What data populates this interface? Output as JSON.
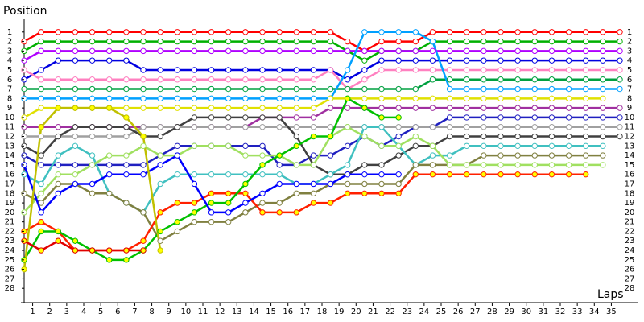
{
  "chart_data": {
    "type": "lap",
    "y_label": "Position",
    "x_label": "Laps",
    "x": [
      0,
      1,
      2,
      3,
      4,
      5,
      6,
      7,
      8,
      9,
      10,
      11,
      12,
      13,
      14,
      15,
      16,
      17,
      18,
      19,
      20,
      21,
      22,
      23,
      24,
      25,
      26,
      27,
      28,
      29,
      30,
      31,
      32,
      33,
      34,
      35
    ],
    "xlim": [
      0,
      35
    ],
    "ylim": [
      0,
      29
    ],
    "y_inverted": true,
    "xticks": [
      {
        "value": 0.5,
        "label": "1"
      },
      {
        "value": 1.5,
        "label": "2"
      },
      {
        "value": 2.5,
        "label": "3"
      },
      {
        "value": 3.5,
        "label": "4"
      },
      {
        "value": 4.5,
        "label": "5"
      },
      {
        "value": 5.5,
        "label": "6"
      },
      {
        "value": 6.5,
        "label": "7"
      },
      {
        "value": 7.5,
        "label": "8"
      },
      {
        "value": 8.5,
        "label": "9"
      },
      {
        "value": 9.5,
        "label": "10"
      },
      {
        "value": 10.5,
        "label": "11"
      },
      {
        "value": 11.5,
        "label": "12"
      },
      {
        "value": 12.5,
        "label": "13"
      },
      {
        "value": 13.5,
        "label": "14"
      },
      {
        "value": 14.5,
        "label": "15"
      },
      {
        "value": 15.5,
        "label": "16"
      },
      {
        "value": 16.5,
        "label": "17"
      },
      {
        "value": 17.5,
        "label": "18"
      },
      {
        "value": 18.5,
        "label": "19"
      },
      {
        "value": 19.5,
        "label": "20"
      },
      {
        "value": 20.5,
        "label": "21"
      },
      {
        "value": 21.5,
        "label": "22"
      },
      {
        "value": 22.5,
        "label": "23"
      },
      {
        "value": 23.5,
        "label": "24"
      },
      {
        "value": 24.5,
        "label": "25"
      },
      {
        "value": 25.5,
        "label": "26"
      },
      {
        "value": 26.5,
        "label": "27"
      },
      {
        "value": 27.5,
        "label": "28"
      },
      {
        "value": 28.5,
        "label": "29"
      },
      {
        "value": 29.5,
        "label": "30"
      },
      {
        "value": 30.5,
        "label": "31"
      },
      {
        "value": 31.5,
        "label": "32"
      },
      {
        "value": 32.5,
        "label": "33"
      },
      {
        "value": 33.5,
        "label": "34"
      },
      {
        "value": 34.5,
        "label": "35"
      }
    ],
    "yticks": [
      1,
      2,
      3,
      4,
      5,
      6,
      7,
      8,
      9,
      10,
      11,
      12,
      13,
      14,
      15,
      16,
      17,
      18,
      19,
      20,
      21,
      22,
      23,
      24,
      25,
      26,
      27,
      28
    ],
    "series": [
      {
        "color": "#ff0000",
        "marker_fill": "#ffffff",
        "values": [
          2,
          1,
          1,
          1,
          1,
          1,
          1,
          1,
          1,
          1,
          1,
          1,
          1,
          1,
          1,
          1,
          1,
          1,
          1,
          2,
          3,
          2,
          2,
          2,
          1,
          1,
          1,
          1,
          1,
          1,
          1,
          1,
          1,
          1,
          1,
          1
        ]
      },
      {
        "color": "#00b000",
        "marker_fill": "#ffffff",
        "values": [
          3,
          2,
          2,
          2,
          2,
          2,
          2,
          2,
          2,
          2,
          2,
          2,
          2,
          2,
          2,
          2,
          2,
          2,
          2,
          3,
          4,
          3,
          3,
          3,
          2,
          2,
          2,
          2,
          2,
          2,
          2,
          2,
          2,
          2,
          2,
          2
        ]
      },
      {
        "color": "#b000ff",
        "marker_fill": "#ffffff",
        "values": [
          4,
          3,
          3,
          3,
          3,
          3,
          3,
          3,
          3,
          3,
          3,
          3,
          3,
          3,
          3,
          3,
          3,
          3,
          3,
          3,
          3,
          3,
          3,
          3,
          3,
          3,
          3,
          3,
          3,
          3,
          3,
          3,
          3,
          3,
          3,
          3
        ]
      },
      {
        "color": "#0000e0",
        "marker_fill": "#ffffff",
        "values": [
          6,
          5,
          4,
          4,
          4,
          4,
          4,
          5,
          5,
          5,
          5,
          5,
          5,
          5,
          5,
          5,
          5,
          5,
          5,
          6,
          5,
          4,
          4,
          4,
          4,
          4,
          4,
          4,
          4,
          4,
          4,
          4,
          4,
          4,
          4,
          4
        ]
      },
      {
        "color": "#ff80c0",
        "marker_fill": "#ffffff",
        "values": [
          5,
          6,
          6,
          6,
          6,
          6,
          6,
          6,
          6,
          6,
          6,
          6,
          6,
          6,
          6,
          6,
          6,
          6,
          5,
          7,
          6,
          5,
          5,
          5,
          5,
          5,
          5,
          5,
          5,
          5,
          5,
          5,
          5,
          5,
          5,
          5
        ]
      },
      {
        "color": "#00a040",
        "marker_fill": "#ffffff",
        "values": [
          7,
          7,
          7,
          7,
          7,
          7,
          7,
          7,
          7,
          7,
          7,
          7,
          7,
          7,
          7,
          7,
          7,
          7,
          7,
          7,
          7,
          7,
          7,
          7,
          6,
          6,
          6,
          6,
          6,
          6,
          6,
          6,
          6,
          6,
          6,
          6
        ]
      },
      {
        "color": "#00a0ff",
        "marker_fill": "#ffffff",
        "values": [
          8,
          8,
          8,
          8,
          8,
          8,
          8,
          8,
          8,
          8,
          8,
          8,
          8,
          8,
          8,
          8,
          8,
          8,
          8,
          5,
          1,
          1,
          1,
          1,
          2,
          7,
          7,
          7,
          7,
          7,
          7,
          7,
          7,
          7,
          7,
          7
        ]
      },
      {
        "color": "#e0e000",
        "marker_fill": "#ffffff",
        "values": [
          10,
          9,
          9,
          9,
          9,
          9,
          9,
          9,
          9,
          9,
          9,
          9,
          9,
          9,
          9,
          9,
          9,
          9,
          8,
          8,
          8,
          8,
          8,
          8,
          8,
          8,
          8,
          8,
          8,
          8,
          8,
          8,
          8,
          8,
          8,
          null
        ]
      },
      {
        "color": "#a030a0",
        "marker_fill": "#ffffff",
        "values": [
          11,
          11,
          11,
          11,
          11,
          11,
          11,
          11,
          11,
          11,
          11,
          11,
          11,
          11,
          10,
          10,
          10,
          10,
          9,
          9,
          9,
          9,
          9,
          9,
          9,
          9,
          9,
          9,
          9,
          9,
          9,
          9,
          9,
          9,
          9,
          9
        ]
      },
      {
        "color": "#2020c0",
        "marker_fill": "#ffffff",
        "values": [
          14,
          15,
          15,
          15,
          15,
          15,
          15,
          15,
          14,
          13,
          13,
          13,
          13,
          13,
          13,
          15,
          15,
          14,
          14,
          13,
          12,
          13,
          12,
          11,
          11,
          10,
          10,
          10,
          10,
          10,
          10,
          10,
          10,
          10,
          10,
          10
        ]
      },
      {
        "color": "#a0a0a0",
        "marker_fill": "#ffffff",
        "values": [
          12,
          12,
          12,
          12,
          12,
          12,
          12,
          11,
          11,
          11,
          11,
          11,
          11,
          11,
          11,
          11,
          11,
          11,
          11,
          11,
          11,
          11,
          11,
          11,
          11,
          11,
          11,
          11,
          11,
          11,
          11,
          11,
          11,
          11,
          11,
          11
        ]
      },
      {
        "color": "#404040",
        "marker_fill": "#ffffff",
        "values": [
          13,
          14,
          12,
          11,
          11,
          11,
          11,
          12,
          12,
          11,
          10,
          10,
          10,
          10,
          10,
          10,
          12,
          15,
          16,
          16,
          15,
          15,
          14,
          13,
          13,
          12,
          12,
          12,
          12,
          12,
          12,
          12,
          12,
          12,
          12,
          12
        ]
      },
      {
        "color": "#40c0c0",
        "marker_fill": "#ffffff",
        "values": [
          16,
          17,
          14,
          13,
          14,
          18,
          19,
          20,
          17,
          16,
          16,
          16,
          16,
          16,
          16,
          16,
          17,
          17,
          16,
          15,
          11,
          11,
          13,
          15,
          14,
          14,
          13,
          13,
          13,
          13,
          13,
          13,
          13,
          13,
          13,
          null
        ]
      },
      {
        "color": "#808040",
        "marker_fill": "#ffffff",
        "values": [
          18,
          19,
          17,
          17,
          18,
          18,
          19,
          20,
          23,
          22,
          21,
          21,
          21,
          20,
          19,
          19,
          18,
          18,
          17,
          17,
          17,
          17,
          17,
          15,
          15,
          15,
          15,
          14,
          14,
          14,
          14,
          14,
          14,
          14,
          14,
          null
        ]
      },
      {
        "color": "#a0e060",
        "marker_fill": "#ffffff",
        "values": [
          20,
          18,
          16,
          16,
          15,
          14,
          14,
          13,
          14,
          14,
          13,
          13,
          13,
          14,
          14,
          14,
          15,
          15,
          12,
          11,
          12,
          13,
          13,
          12,
          13,
          15,
          15,
          15,
          15,
          15,
          15,
          15,
          15,
          15,
          15,
          null
        ]
      },
      {
        "color": "#ff2000",
        "marker_fill": "#ffff00",
        "values": [
          22,
          21,
          22,
          24,
          24,
          24,
          24,
          23,
          20,
          19,
          19,
          18,
          18,
          18,
          20,
          20,
          20,
          19,
          19,
          18,
          18,
          18,
          18,
          16,
          16,
          16,
          16,
          16,
          16,
          16,
          16,
          16,
          16,
          16,
          null,
          null
        ]
      },
      {
        "color": "#00c000",
        "marker_fill": "#ffff00",
        "values": [
          25,
          22,
          22,
          23,
          24,
          25,
          25,
          24,
          22,
          21,
          20,
          19,
          19,
          17,
          15,
          14,
          13,
          12,
          12,
          8,
          9,
          10,
          10,
          null,
          null,
          null,
          null,
          null,
          null,
          null,
          null,
          null,
          null,
          null,
          null,
          null
        ]
      },
      {
        "color": "#0000ff",
        "marker_fill": "#ffffff",
        "values": [
          15,
          20,
          18,
          17,
          17,
          16,
          16,
          16,
          15,
          14,
          17,
          20,
          20,
          19,
          18,
          17,
          17,
          17,
          17,
          16,
          16,
          16,
          16,
          null,
          null,
          null,
          null,
          null,
          null,
          null,
          null,
          null,
          null,
          null,
          null,
          null
        ]
      },
      {
        "color": "#c0c000",
        "marker_fill": "#ffff00",
        "values": [
          26,
          11,
          9,
          9,
          9,
          9,
          10,
          12,
          24,
          null,
          null,
          null,
          null,
          null,
          null,
          null,
          null,
          null,
          null,
          null,
          null,
          null,
          null,
          null,
          null,
          null,
          null,
          null,
          null,
          null,
          null,
          null,
          null,
          null,
          null,
          null
        ]
      },
      {
        "color": "#e00000",
        "marker_fill": "#ffff00",
        "values": [
          23,
          24,
          23,
          24,
          24,
          24,
          24,
          24,
          null,
          null,
          null,
          null,
          null,
          null,
          null,
          null,
          null,
          null,
          null,
          null,
          null,
          null,
          null,
          null,
          null,
          null,
          null,
          null,
          null,
          null,
          null,
          null,
          null,
          null,
          null,
          null
        ]
      }
    ]
  }
}
